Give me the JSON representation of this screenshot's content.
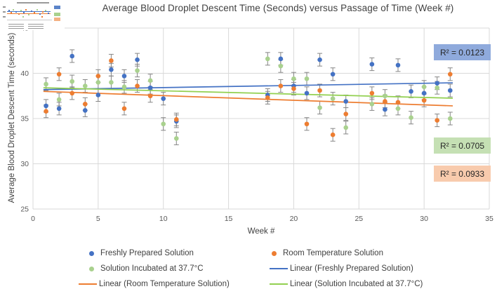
{
  "chart_data": {
    "type": "scatter",
    "title": "Average Blood Droplet Descent Time (Seconds) versus Passage of Time (Week #)",
    "xlabel": "Week #",
    "ylabel": "Average Blood Droplet Descent Time (seconds)",
    "xlim": [
      0,
      35
    ],
    "ylim": [
      25,
      45
    ],
    "x_ticks": [
      0,
      5,
      10,
      15,
      20,
      25,
      30,
      35
    ],
    "y_ticks": [
      25,
      30,
      35,
      40,
      45
    ],
    "grid": true,
    "error_bar": 0.7,
    "series": [
      {
        "name": "Freshly Prepared Solution",
        "color": "#4472C4",
        "points": [
          [
            1,
            36.4
          ],
          [
            2,
            36.1
          ],
          [
            3,
            41.9
          ],
          [
            4,
            35.9
          ],
          [
            5,
            37.6
          ],
          [
            6,
            40.4
          ],
          [
            7,
            39.7
          ],
          [
            8,
            41.5
          ],
          [
            9,
            38.4
          ],
          [
            10,
            37.2
          ],
          [
            11,
            34.7
          ],
          [
            18,
            37.6
          ],
          [
            19,
            41.6
          ],
          [
            20,
            38.6
          ],
          [
            21,
            37.8
          ],
          [
            22,
            41.5
          ],
          [
            23,
            39.9
          ],
          [
            24,
            36.9
          ],
          [
            26,
            41.0
          ],
          [
            27,
            36.0
          ],
          [
            28,
            40.9
          ],
          [
            29,
            38.0
          ],
          [
            30,
            37.8
          ],
          [
            31,
            38.9
          ],
          [
            32,
            38.1
          ]
        ]
      },
      {
        "name": "Room Temperature Solution",
        "color": "#ED7D31",
        "points": [
          [
            1,
            35.8
          ],
          [
            2,
            39.9
          ],
          [
            3,
            37.8
          ],
          [
            4,
            36.6
          ],
          [
            5,
            39.7
          ],
          [
            6,
            41.4
          ],
          [
            7,
            36.1
          ],
          [
            8,
            38.6
          ],
          [
            9,
            37.5
          ],
          [
            11,
            34.9
          ],
          [
            18,
            37.3
          ],
          [
            19,
            38.6
          ],
          [
            20,
            38.3
          ],
          [
            21,
            34.4
          ],
          [
            22,
            38.1
          ],
          [
            23,
            33.2
          ],
          [
            24,
            35.5
          ],
          [
            26,
            37.8
          ],
          [
            27,
            36.9
          ],
          [
            28,
            36.8
          ],
          [
            30,
            37.0
          ],
          [
            31,
            34.8
          ],
          [
            32,
            39.9
          ]
        ]
      },
      {
        "name": "Solution Incubated at 37.7°C",
        "color": "#A9D18E",
        "points": [
          [
            1,
            38.8
          ],
          [
            2,
            37.1
          ],
          [
            3,
            39.1
          ],
          [
            4,
            38.6
          ],
          [
            5,
            39.0
          ],
          [
            6,
            39.0
          ],
          [
            7,
            38.5
          ],
          [
            8,
            40.3
          ],
          [
            9,
            39.2
          ],
          [
            10,
            34.4
          ],
          [
            11,
            32.8
          ],
          [
            18,
            41.6
          ],
          [
            19,
            40.8
          ],
          [
            20,
            39.4
          ],
          [
            21,
            39.4
          ],
          [
            22,
            36.2
          ],
          [
            23,
            37.2
          ],
          [
            24,
            34.0
          ],
          [
            26,
            36.6
          ],
          [
            27,
            37.5
          ],
          [
            28,
            36.1
          ],
          [
            29,
            35.1
          ],
          [
            30,
            38.5
          ],
          [
            31,
            38.4
          ],
          [
            32,
            35.0
          ]
        ]
      }
    ],
    "trendlines": [
      {
        "name": "Linear (Freshly Prepared Solution)",
        "color": "#4472C4",
        "x1": 0.8,
        "y1": 38.2,
        "x2": 32.2,
        "y2": 38.95,
        "r2": 0.0123
      },
      {
        "name": "Linear (Room Temperature Solution)",
        "color": "#ED7D31",
        "x1": 0.8,
        "y1": 38.0,
        "x2": 32.2,
        "y2": 36.4,
        "r2": 0.0933
      },
      {
        "name": "Linear (Solution Incubated at 37.7°C)",
        "color": "#92D050",
        "x1": 0.8,
        "y1": 38.4,
        "x2": 32.2,
        "y2": 37.25,
        "r2": 0.0705
      }
    ],
    "legend_position": "bottom"
  },
  "r2_labels": [
    {
      "text": "R² = 0.0123",
      "bg": "#8FAADC"
    },
    {
      "text": "R² = 0.0705",
      "bg": "#C5E0B4"
    },
    {
      "text": "R² = 0.0933",
      "bg": "#F8CBAD"
    }
  ],
  "legend": {
    "items": [
      {
        "label": "Freshly Prepared Solution",
        "swatch": "dot",
        "color": "#4472C4"
      },
      {
        "label": "Room Temperature Solution",
        "swatch": "dot",
        "color": "#ED7D31"
      },
      {
        "label": "Solution Incubated at 37.7°C",
        "swatch": "dot",
        "color": "#A9D18E"
      },
      {
        "label": "Linear (Freshly Prepared Solution)",
        "swatch": "line",
        "color": "#4472C4"
      },
      {
        "label": "Linear (Room Temperature Solution)",
        "swatch": "line",
        "color": "#ED7D31"
      },
      {
        "label": "Linear (Solution Incubated at 37.7°C)",
        "swatch": "line",
        "color": "#92D050"
      }
    ]
  },
  "colors": {
    "gridline": "#D9D9D9",
    "error_bar": "#858585",
    "axis_text": "#595959"
  }
}
